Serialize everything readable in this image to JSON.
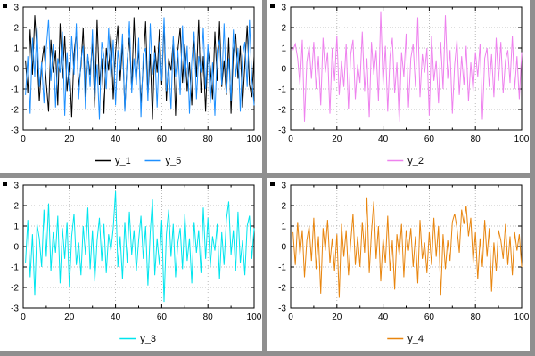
{
  "layout": {
    "separator_color": "#8f8f8f",
    "plot_background": "#ffffff",
    "grid_color": "#aaaaaa",
    "frame_color": "#000000"
  },
  "chart_data": [
    {
      "type": "line",
      "position": "top-left",
      "title": "",
      "xlabel": "",
      "ylabel": "",
      "xlim": [
        0,
        100
      ],
      "xticks": [
        0,
        20,
        40,
        60,
        80,
        100
      ],
      "ylim": [
        -3,
        3
      ],
      "yticks": [
        -3,
        -2,
        -1,
        0,
        1,
        2,
        3
      ],
      "grid": "dotted",
      "legend_position": "below",
      "x_start": 1,
      "x_step": 1,
      "series": [
        {
          "name": "y_1",
          "color": "#000000",
          "values": [
            0.4,
            -1.2,
            1.9,
            -0.3,
            2.6,
            0.8,
            -1.6,
            0.2,
            1.1,
            -0.7,
            -2.1,
            1.4,
            -0.2,
            0.9,
            -1.8,
            2.2,
            -0.5,
            1.6,
            -1.1,
            0.3,
            -2.4,
            0.7,
            1.8,
            -0.9,
            0.1,
            2.0,
            -1.4,
            0.6,
            -0.3,
            1.3,
            -1.9,
            2.4,
            -0.8,
            0.5,
            -2.2,
            1.0,
            -0.1,
            1.7,
            -1.5,
            0.8,
            2.1,
            -0.6,
            1.2,
            -2.0,
            0.4,
            1.5,
            -1.0,
            2.5,
            -0.4,
            0.9,
            -1.7,
            0.2,
            2.3,
            -1.3,
            0.7,
            -2.5,
            1.1,
            -0.2,
            1.9,
            -0.8,
            2.2,
            -1.6,
            0.5,
            -0.1,
            1.4,
            -2.3,
            0.9,
            2.0,
            -0.7,
            1.2,
            -1.1,
            0.3,
            -1.8,
            1.6,
            -0.4,
            2.4,
            -1.2,
            0.6,
            -2.1,
            1.0,
            0.1,
            -1.5,
            1.8,
            -0.6,
            2.3,
            -0.9,
            0.4,
            -1.3,
            1.5,
            -2.2,
            0.8,
            1.7,
            -0.5,
            1.1,
            -1.9,
            0.2,
            2.1,
            -0.8,
            -1.4,
            0.6
          ]
        },
        {
          "name": "y_5",
          "color": "#1E90FF",
          "values": [
            -1.3,
            0.6,
            -2.2,
            1.5,
            -0.4,
            2.1,
            -0.9,
            0.3,
            -1.7,
            1.0,
            2.4,
            -0.6,
            1.2,
            -1.9,
            0.5,
            -0.2,
            1.8,
            -2.3,
            0.8,
            -1.1,
            1.6,
            -0.3,
            2.2,
            -1.5,
            0.4,
            1.1,
            -2.0,
            0.7,
            -0.9,
            1.9,
            -1.4,
            0.2,
            -2.5,
            1.3,
            0.6,
            -1.0,
            2.0,
            -0.5,
            1.4,
            -1.8,
            0.9,
            -0.1,
            1.7,
            -2.1,
            0.3,
            2.3,
            -1.2,
            0.5,
            -0.8,
            1.5,
            -2.4,
            0.7,
            1.0,
            -1.6,
            2.2,
            -0.3,
            0.8,
            -1.9,
            1.3,
            -0.6,
            2.5,
            -1.1,
            0.2,
            -2.0,
            1.6,
            -0.4,
            0.9,
            -1.3,
            2.1,
            -0.7,
            1.1,
            -2.2,
            0.4,
            1.8,
            -1.5,
            0.6,
            -0.2,
            2.0,
            -1.0,
            1.2,
            -1.7,
            0.3,
            -2.3,
            0.9,
            1.4,
            -0.8,
            2.2,
            -1.2,
            0.5,
            -1.6,
            1.9,
            -0.4,
            1.0,
            -2.1,
            0.6,
            1.3,
            -0.9,
            2.4,
            -0.5,
            -1.8
          ]
        }
      ]
    },
    {
      "type": "line",
      "position": "top-right",
      "title": "",
      "xlabel": "",
      "ylabel": "",
      "xlim": [
        0,
        100
      ],
      "xticks": [
        0,
        20,
        40,
        60,
        80,
        100
      ],
      "ylim": [
        -3,
        3
      ],
      "yticks": [
        -3,
        -2,
        -1,
        0,
        1,
        2,
        3
      ],
      "grid": "dotted",
      "legend_position": "below",
      "x_start": 1,
      "x_step": 1,
      "series": [
        {
          "name": "y_2",
          "color": "#EE82EE",
          "values": [
            0.9,
            1.2,
            0.5,
            -0.8,
            1.4,
            -2.6,
            0.3,
            1.1,
            -0.5,
            1.3,
            -1.0,
            0.6,
            -1.8,
            1.5,
            -0.2,
            0.8,
            -2.2,
            1.0,
            -0.6,
            1.6,
            -1.3,
            0.4,
            -0.9,
            1.2,
            -2.0,
            0.7,
            1.4,
            -1.5,
            0.2,
            -0.7,
            1.8,
            -1.1,
            0.5,
            -2.4,
            1.3,
            -0.3,
            0.9,
            -1.6,
            2.8,
            -0.8,
            1.1,
            -2.1,
            0.6,
            1.5,
            -1.2,
            0.3,
            -2.6,
            0.8,
            -0.4,
            1.7,
            -1.9,
            0.5,
            1.2,
            -0.9,
            2.5,
            -1.4,
            0.7,
            -0.2,
            1.0,
            -2.3,
            1.6,
            -0.6,
            0.4,
            -1.7,
            1.3,
            -1.0,
            2.6,
            -0.5,
            0.9,
            -2.2,
            0.2,
            1.4,
            -1.3,
            0.6,
            -0.8,
            1.1,
            -1.6,
            0.3,
            -1.1,
            0.8,
            -0.4,
            1.2,
            -2.5,
            0.5,
            1.0,
            -0.9,
            0.7,
            -1.4,
            1.5,
            -0.6,
            1.3,
            -1.2,
            0.4,
            0.9,
            -0.7,
            1.6,
            -1.0,
            0.6,
            -1.5,
            0.8
          ]
        }
      ]
    },
    {
      "type": "line",
      "position": "bottom-left",
      "title": "",
      "xlabel": "",
      "ylabel": "",
      "xlim": [
        0,
        100
      ],
      "xticks": [
        0,
        20,
        40,
        60,
        80,
        100
      ],
      "ylim": [
        -3,
        3
      ],
      "yticks": [
        -3,
        -2,
        -1,
        0,
        1,
        2,
        3
      ],
      "grid": "dotted",
      "legend_position": "below",
      "x_start": 1,
      "x_step": 1,
      "series": [
        {
          "name": "y_3",
          "color": "#00E5EE",
          "values": [
            -0.8,
            1.3,
            -1.5,
            0.6,
            -2.4,
            1.1,
            0.4,
            -1.0,
            1.8,
            -0.5,
            2.1,
            -1.2,
            0.7,
            -0.3,
            1.5,
            -1.8,
            0.9,
            -0.6,
            1.2,
            -2.0,
            0.5,
            1.6,
            -0.9,
            0.2,
            -1.4,
            1.0,
            -0.4,
            1.9,
            -1.1,
            0.8,
            -1.7,
            0.3,
            1.4,
            -0.7,
            1.1,
            -1.3,
            0.6,
            -0.2,
            0.9,
            2.7,
            -1.0,
            0.5,
            -1.6,
            1.2,
            -0.8,
            1.7,
            -0.4,
            0.8,
            -1.2,
            0.3,
            1.5,
            -0.6,
            1.0,
            -1.9,
            0.7,
            2.3,
            -1.4,
            0.4,
            -0.9,
            1.3,
            -2.7,
            0.6,
            1.8,
            -0.5,
            1.1,
            -1.5,
            0.2,
            0.9,
            -1.1,
            1.6,
            -0.7,
            0.4,
            -1.8,
            1.2,
            -0.3,
            0.8,
            -1.3,
            1.9,
            -0.6,
            1.4,
            -1.0,
            0.5,
            -0.2,
            1.1,
            -1.6,
            0.7,
            -0.9,
            1.3,
            2.2,
            -0.4,
            0.8,
            -1.2,
            1.7,
            -0.8,
            0.3,
            -1.4,
            1.0,
            1.5,
            -0.6,
            0.9
          ]
        }
      ]
    },
    {
      "type": "line",
      "position": "bottom-right",
      "title": "",
      "xlabel": "",
      "ylabel": "",
      "xlim": [
        0,
        100
      ],
      "xticks": [
        0,
        20,
        40,
        60,
        80,
        100
      ],
      "ylim": [
        -3,
        3
      ],
      "yticks": [
        -3,
        -2,
        -1,
        0,
        1,
        2,
        3
      ],
      "grid": "dotted",
      "legend_position": "below",
      "x_start": 1,
      "x_step": 1,
      "series": [
        {
          "name": "y_4",
          "color": "#E8850E",
          "values": [
            0.7,
            -0.9,
            1.2,
            -0.4,
            0.8,
            -1.5,
            0.3,
            1.0,
            -0.7,
            1.4,
            -1.1,
            0.5,
            -2.3,
            0.9,
            -0.2,
            1.3,
            -0.8,
            0.4,
            -1.2,
            0.6,
            -2.5,
            1.1,
            -0.5,
            0.8,
            -1.4,
            0.2,
            1.6,
            -0.9,
            0.5,
            -1.0,
            1.2,
            -0.3,
            2.4,
            -1.3,
            0.7,
            2.2,
            -0.6,
            1.0,
            -1.7,
            0.4,
            -0.8,
            1.5,
            -1.2,
            0.3,
            -2.1,
            0.6,
            -0.4,
            1.1,
            -1.5,
            0.8,
            -0.2,
            0.9,
            -1.0,
            0.5,
            -1.8,
            1.3,
            -0.6,
            0.2,
            -1.3,
            0.7,
            -0.9,
            1.4,
            -0.5,
            1.0,
            -2.4,
            0.6,
            -1.1,
            0.3,
            -0.7,
            1.2,
            1.6,
            0.9,
            -0.3,
            1.8,
            1.1,
            2.0,
            0.5,
            1.4,
            -0.8,
            0.7,
            -1.6,
            0.4,
            -1.0,
            1.3,
            -0.5,
            0.9,
            -2.2,
            0.2,
            -1.2,
            0.8,
            0.3,
            -0.6,
            1.1,
            -0.9,
            0.5,
            -1.4,
            0.7,
            -0.2,
            0.6,
            -1.0
          ]
        }
      ]
    }
  ]
}
